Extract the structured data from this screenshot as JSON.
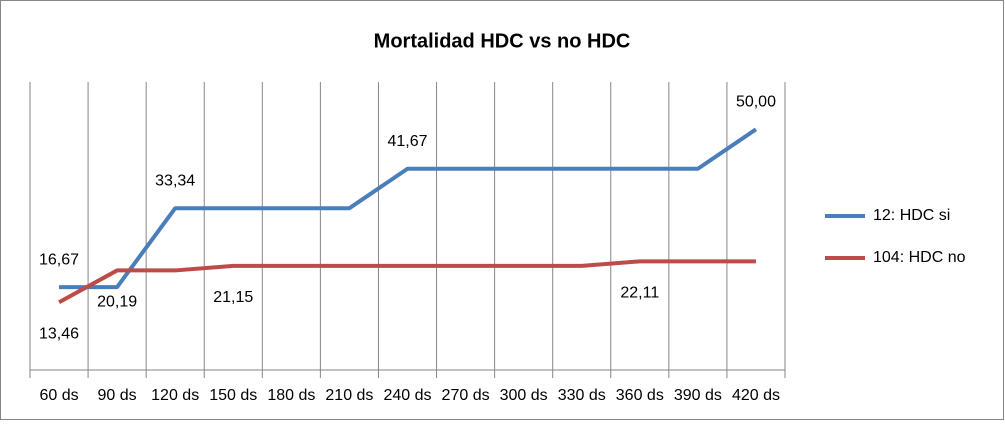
{
  "chart_data": {
    "type": "line",
    "title": "Mortalidad HDC vs no HDC",
    "categories": [
      "60 ds",
      "90 ds",
      "120 ds",
      "150 ds",
      "180 ds",
      "210 ds",
      "240 ds",
      "270 ds",
      "300 ds",
      "330 ds",
      "360 ds",
      "390 ds",
      "420 ds"
    ],
    "series": [
      {
        "name": "12: HDC si",
        "color": "#4a7ebb",
        "values": [
          16.67,
          16.67,
          33.34,
          33.34,
          33.34,
          33.34,
          41.67,
          41.67,
          41.67,
          41.67,
          41.67,
          41.67,
          50.0
        ],
        "value_labels": [
          "16,67",
          null,
          "33,34",
          null,
          null,
          null,
          "41,67",
          null,
          null,
          null,
          null,
          null,
          "50,00"
        ]
      },
      {
        "name": "104: HDC no",
        "color": "#be4b48",
        "values": [
          13.46,
          20.19,
          20.19,
          21.15,
          21.15,
          21.15,
          21.15,
          21.15,
          21.15,
          21.15,
          22.11,
          22.11,
          22.11
        ],
        "value_labels": [
          "13,46",
          "20,19",
          null,
          "21,15",
          null,
          null,
          null,
          null,
          null,
          null,
          "22,11",
          null,
          null
        ]
      }
    ],
    "ylim": [
      0,
      60
    ],
    "legend": "right"
  }
}
